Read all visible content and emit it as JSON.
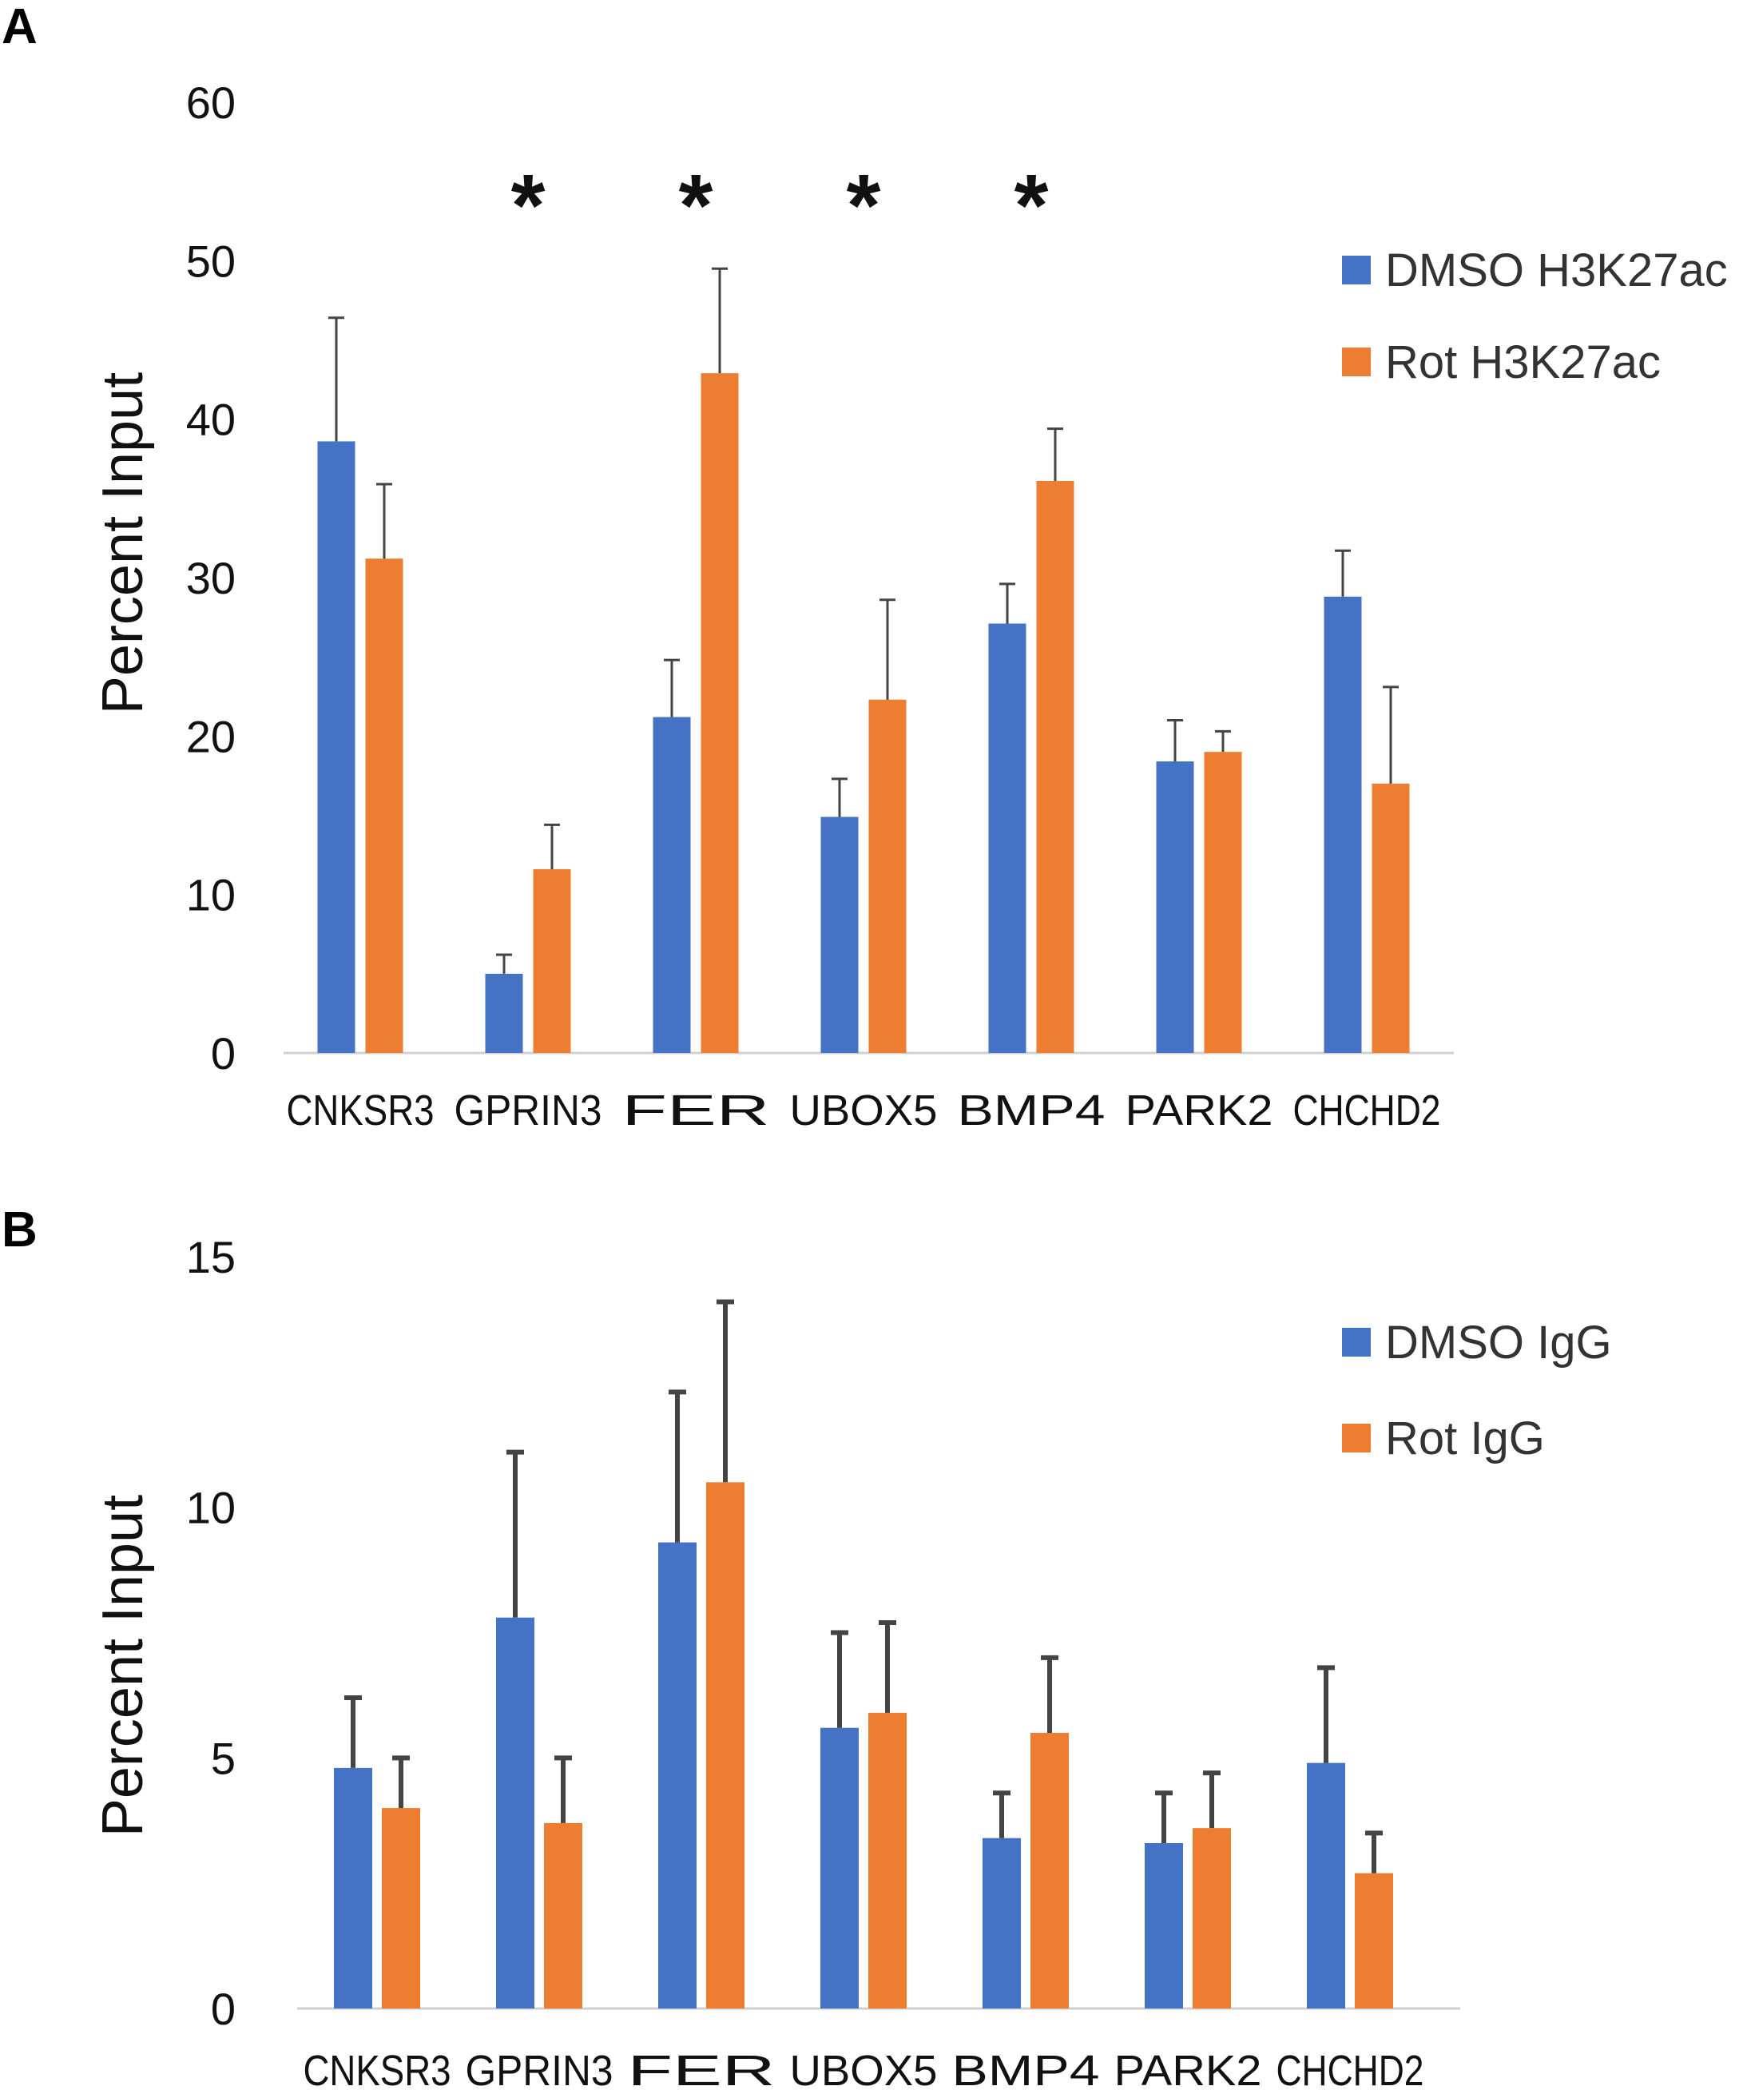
{
  "chart_data": [
    {
      "panel": "A",
      "type": "bar",
      "ylabel": "Percent Input",
      "ylim": [
        0,
        60
      ],
      "yticks": [
        0,
        10,
        20,
        30,
        40,
        50,
        60
      ],
      "categories": [
        "CNKSR3",
        "GPRIN3",
        "FER",
        "UBOX5",
        "BMP4",
        "PARK2",
        "CHCHD2"
      ],
      "series": [
        {
          "name": "DMSO H3K27ac",
          "color": "#4472C4",
          "values": [
            38.6,
            5.0,
            21.2,
            14.9,
            27.1,
            18.4,
            28.8
          ],
          "errors": [
            7.8,
            1.2,
            3.6,
            2.4,
            2.5,
            2.6,
            2.9
          ]
        },
        {
          "name": "Rot H3K27ac",
          "color": "#ED7D31",
          "values": [
            31.2,
            11.6,
            42.9,
            22.3,
            36.1,
            19.0,
            17.0
          ],
          "errors": [
            4.7,
            2.8,
            6.6,
            6.3,
            3.3,
            1.3,
            6.1
          ]
        }
      ],
      "significance": [
        "",
        "*",
        "*",
        "*",
        "*",
        "",
        ""
      ],
      "legend": "top-right"
    },
    {
      "panel": "B",
      "type": "bar",
      "ylabel": "Percent Input",
      "ylim": [
        0,
        15
      ],
      "yticks": [
        0,
        5,
        10,
        15
      ],
      "categories": [
        "CNKSR3",
        "GPRIN3",
        "FER",
        "UBOX5",
        "BMP4",
        "PARK2",
        "CHCHD2"
      ],
      "series": [
        {
          "name": "DMSO IgG",
          "color": "#4472C4",
          "values": [
            4.8,
            7.8,
            9.3,
            5.6,
            3.4,
            3.3,
            4.9
          ],
          "errors": [
            1.4,
            3.3,
            3.0,
            1.9,
            0.9,
            1.0,
            1.9
          ]
        },
        {
          "name": "Rot IgG",
          "color": "#ED7D31",
          "values": [
            4.0,
            3.7,
            10.5,
            5.9,
            5.5,
            3.6,
            2.7
          ],
          "errors": [
            1.0,
            1.3,
            3.6,
            1.8,
            1.5,
            1.1,
            0.8
          ]
        }
      ],
      "significance": [
        "",
        "",
        "",
        "",
        "",
        "",
        ""
      ],
      "legend": "top-right"
    }
  ]
}
